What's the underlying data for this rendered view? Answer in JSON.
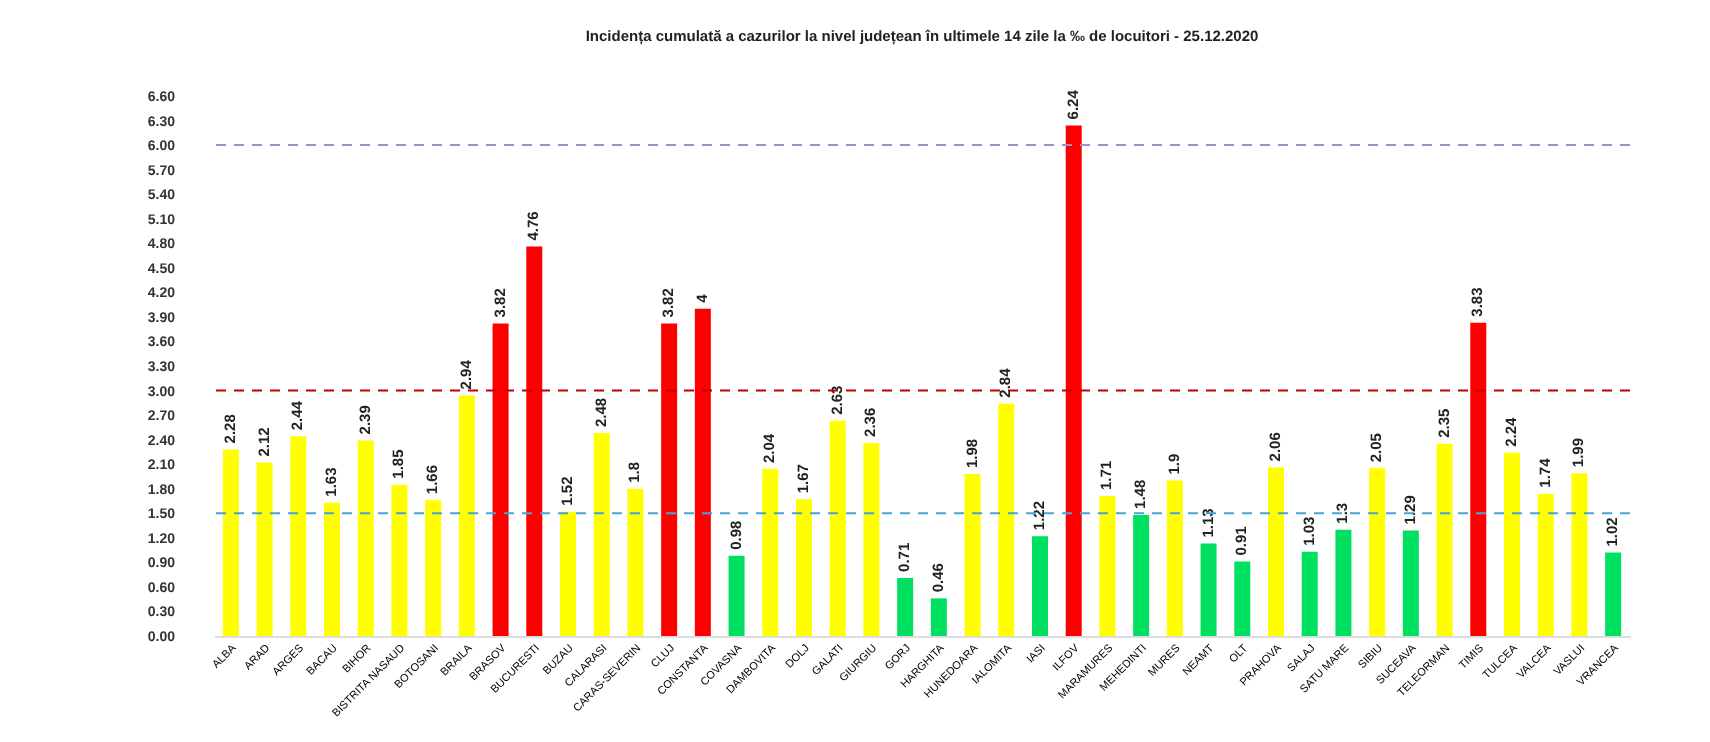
{
  "chart_data": {
    "type": "bar",
    "title": "Incidența cumulată a cazurilor la nivel județean în ultimele 14 zile la ‰ de locuitori - 25.12.2020",
    "categories": [
      "ALBA",
      "ARAD",
      "ARGES",
      "BACAU",
      "BIHOR",
      "BISTRITA NASAUD",
      "BOTOSANI",
      "BRAILA",
      "BRASOV",
      "BUCURESTI",
      "BUZAU",
      "CALARASI",
      "CARAS-SEVERIN",
      "CLUJ",
      "CONSTANTA",
      "COVASNA",
      "DAMBOVITA",
      "DOLJ",
      "GALATI",
      "GIURGIU",
      "GORJ",
      "HARGHITA",
      "HUNEDOARA",
      "IALOMITA",
      "IASI",
      "ILFOV",
      "MARAMURES",
      "MEHEDINTI",
      "MURES",
      "NEAMT",
      "OLT",
      "PRAHOVA",
      "SALAJ",
      "SATU MARE",
      "SIBIU",
      "SUCEAVA",
      "TELEORMAN",
      "TIMIS",
      "TULCEA",
      "VALCEA",
      "VASLUI",
      "VRANCEA"
    ],
    "values": [
      2.28,
      2.12,
      2.44,
      1.63,
      2.39,
      1.85,
      1.66,
      2.94,
      3.82,
      4.76,
      1.52,
      2.48,
      1.8,
      3.82,
      4,
      0.98,
      2.04,
      1.67,
      2.63,
      2.36,
      0.71,
      0.46,
      1.98,
      2.84,
      1.22,
      6.24,
      1.71,
      1.48,
      1.9,
      1.13,
      0.91,
      2.06,
      1.03,
      1.3,
      2.05,
      1.29,
      2.35,
      3.83,
      2.24,
      1.74,
      1.99,
      1.02
    ],
    "colors": [
      "#ffff00",
      "#ffff00",
      "#ffff00",
      "#ffff00",
      "#ffff00",
      "#ffff00",
      "#ffff00",
      "#ffff00",
      "#ff0000",
      "#ff0000",
      "#ffff00",
      "#ffff00",
      "#ffff00",
      "#ff0000",
      "#ff0000",
      "#00e060",
      "#ffff00",
      "#ffff00",
      "#ffff00",
      "#ffff00",
      "#00e060",
      "#00e060",
      "#ffff00",
      "#ffff00",
      "#00e060",
      "#ff0000",
      "#ffff00",
      "#00e060",
      "#ffff00",
      "#00e060",
      "#00e060",
      "#ffff00",
      "#00e060",
      "#00e060",
      "#ffff00",
      "#00e060",
      "#ffff00",
      "#ff0000",
      "#ffff00",
      "#ffff00",
      "#ffff00",
      "#00e060"
    ],
    "ylim": [
      0,
      6.6
    ],
    "yticks": [
      {
        "value": 0,
        "label": "0.00"
      },
      {
        "value": 0.3,
        "label": "0.30"
      },
      {
        "value": 0.6,
        "label": "0.60"
      },
      {
        "value": 0.9,
        "label": "0.90"
      },
      {
        "value": 1.2,
        "label": "1.20"
      },
      {
        "value": 1.5,
        "label": "1.50"
      },
      {
        "value": 1.8,
        "label": "1.80"
      },
      {
        "value": 2.1,
        "label": "2.10"
      },
      {
        "value": 2.4,
        "label": "2.40"
      },
      {
        "value": 2.7,
        "label": "2.70"
      },
      {
        "value": 3,
        "label": "3.00"
      },
      {
        "value": 3.3,
        "label": "3.30"
      },
      {
        "value": 3.6,
        "label": "3.60"
      },
      {
        "value": 3.9,
        "label": "3.90"
      },
      {
        "value": 4.2,
        "label": "4.20"
      },
      {
        "value": 4.5,
        "label": "4.50"
      },
      {
        "value": 4.8,
        "label": "4.80"
      },
      {
        "value": 5.1,
        "label": "5.10"
      },
      {
        "value": 5.4,
        "label": "5.40"
      },
      {
        "value": 5.7,
        "label": "5.70"
      },
      {
        "value": 6,
        "label": "6.00"
      },
      {
        "value": 6.3,
        "label": "6.30"
      },
      {
        "value": 6.6,
        "label": "6.60"
      }
    ],
    "ref_lines": [
      {
        "axis": "y",
        "value": 6,
        "color": "#a98cc4",
        "line_style": "dashed"
      },
      {
        "axis": "y",
        "value": 3,
        "color": "#c00000",
        "line_style": "dashed"
      },
      {
        "axis": "y",
        "value": 1.5,
        "color": "#4aa3d6",
        "line_style": "dashed"
      }
    ],
    "data_labels": true
  }
}
